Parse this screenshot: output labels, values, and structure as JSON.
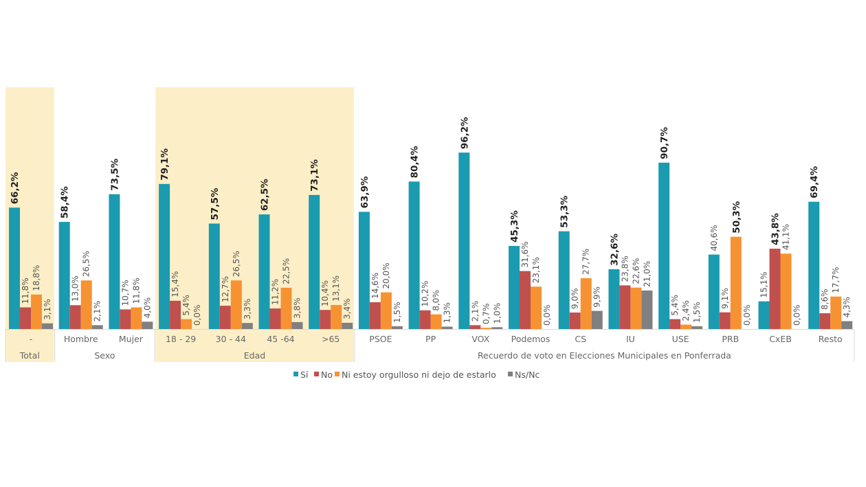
{
  "chart_data": {
    "type": "bar",
    "title": "",
    "xlabel": "",
    "ylabel": "",
    "ylim": [
      0,
      100
    ],
    "grid": false,
    "legend_position": "bottom",
    "value_format": "0,0%",
    "groups": [
      {
        "label": "Total",
        "categories": [
          "-"
        ],
        "highlight": true
      },
      {
        "label": "Sexo",
        "categories": [
          "Hombre",
          "Mujer"
        ],
        "highlight": false
      },
      {
        "label": "Edad",
        "categories": [
          "18 - 29",
          "30 - 44",
          "45 -64",
          ">65"
        ],
        "highlight": true
      },
      {
        "label": "Recuerdo de voto en Elecciones Municipales en Ponferrada",
        "categories": [
          "PSOE",
          "PP",
          "VOX",
          "Podemos",
          "CS",
          "IU",
          "USE",
          "PRB",
          "CxEB",
          "Resto"
        ],
        "highlight": false
      }
    ],
    "categories": [
      "-",
      "Hombre",
      "Mujer",
      "18 - 29",
      "30 - 44",
      "45 -64",
      ">65",
      "PSOE",
      "PP",
      "VOX",
      "Podemos",
      "CS",
      "IU",
      "USE",
      "PRB",
      "CxEB",
      "Resto"
    ],
    "series": [
      {
        "name": "Sí",
        "color": "#1a9bb0",
        "values": [
          66.2,
          58.4,
          73.5,
          79.1,
          57.5,
          62.5,
          73.1,
          63.9,
          80.4,
          96.2,
          45.3,
          53.3,
          32.6,
          90.7,
          40.6,
          15.1,
          69.4
        ]
      },
      {
        "name": "No",
        "color": "#c0504d",
        "values": [
          11.8,
          13.0,
          10.7,
          15.4,
          12.7,
          11.2,
          10.4,
          14.6,
          10.2,
          2.1,
          31.6,
          9.0,
          23.8,
          5.4,
          9.1,
          43.8,
          8.6
        ]
      },
      {
        "name": "Ni estoy orgulloso ni dejo de estarlo",
        "color": "#f79232",
        "values": [
          18.8,
          26.5,
          11.8,
          5.4,
          26.5,
          22.5,
          13.1,
          20.0,
          8.0,
          0.7,
          23.1,
          27.7,
          22.6,
          2.4,
          50.3,
          41.1,
          17.7
        ]
      },
      {
        "name": "Ns/Nc",
        "color": "#808080",
        "values": [
          3.1,
          2.1,
          4.0,
          0.0,
          3.3,
          3.8,
          3.4,
          1.5,
          1.3,
          1.0,
          0.0,
          9.9,
          21.0,
          1.5,
          0.0,
          0.0,
          4.3
        ]
      }
    ],
    "highlight_color": "#fcefc7"
  }
}
